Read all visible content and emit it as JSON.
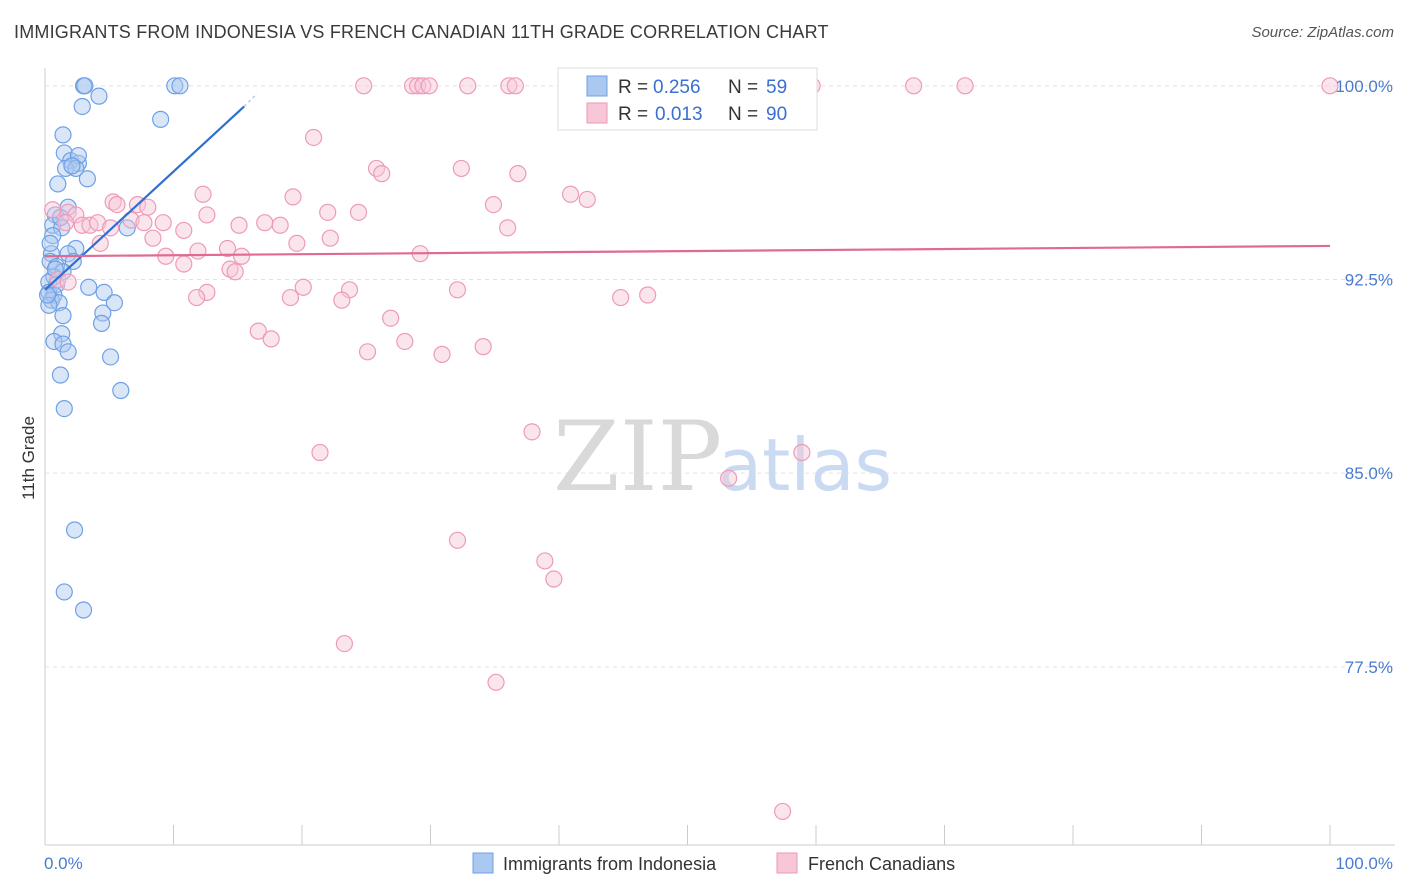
{
  "chart_data": {
    "type": "scatter",
    "title": "IMMIGRANTS FROM INDONESIA VS FRENCH CANADIAN 11TH GRADE CORRELATION CHART",
    "source": "Source: ZipAtlas.com",
    "ylabel": "11th Grade",
    "xlim": [
      0,
      100
    ],
    "ylim": [
      70.6,
      101.0
    ],
    "y_ticks": [
      {
        "value": 100.0,
        "label": "100.0%"
      },
      {
        "value": 92.5,
        "label": "92.5%"
      },
      {
        "value": 85.0,
        "label": "85.0%"
      },
      {
        "value": 77.5,
        "label": "77.5%"
      }
    ],
    "x_tick_labels": {
      "min": "0.0%",
      "max": "100.0%"
    },
    "x_tick_values": [
      0,
      10,
      20,
      30,
      40,
      50,
      60,
      70,
      80,
      90,
      100
    ],
    "watermark": {
      "zip": "ZIP",
      "atlas": "atlas"
    },
    "legend": {
      "r_label": "R =",
      "n_label": "N ="
    },
    "series": [
      {
        "name": "Immigrants from Indonesia",
        "color": "#6fa0e6",
        "fill": "#aac8f0",
        "line_color": "#2f6fd2",
        "r": "0.256",
        "n": "59",
        "trend": {
          "x0": 0.0,
          "y0": 92.1,
          "x1": 15.5,
          "y1": 99.2,
          "dash_to_x": 16.5,
          "dash_to_y": 99.7
        },
        "points": [
          [
            3.0,
            100.0
          ],
          [
            3.1,
            100.0
          ],
          [
            10.1,
            100.0
          ],
          [
            10.5,
            100.0
          ],
          [
            4.2,
            99.6
          ],
          [
            2.9,
            99.2
          ],
          [
            9.0,
            98.7
          ],
          [
            1.4,
            98.1
          ],
          [
            1.5,
            97.4
          ],
          [
            2.0,
            97.1
          ],
          [
            2.6,
            97.0
          ],
          [
            2.6,
            97.3
          ],
          [
            1.6,
            96.8
          ],
          [
            2.4,
            96.8
          ],
          [
            3.3,
            96.4
          ],
          [
            1.0,
            96.2
          ],
          [
            1.8,
            95.3
          ],
          [
            0.8,
            95.0
          ],
          [
            0.6,
            94.6
          ],
          [
            1.3,
            94.5
          ],
          [
            6.4,
            94.5
          ],
          [
            0.6,
            94.2
          ],
          [
            2.4,
            93.7
          ],
          [
            0.5,
            93.5
          ],
          [
            1.8,
            93.5
          ],
          [
            0.4,
            93.2
          ],
          [
            0.9,
            93.0
          ],
          [
            2.2,
            93.2
          ],
          [
            1.4,
            92.8
          ],
          [
            0.7,
            92.6
          ],
          [
            0.3,
            92.4
          ],
          [
            0.9,
            92.3
          ],
          [
            3.4,
            92.2
          ],
          [
            4.6,
            92.0
          ],
          [
            0.3,
            92.0
          ],
          [
            0.7,
            91.9
          ],
          [
            0.5,
            91.7
          ],
          [
            1.1,
            91.6
          ],
          [
            5.4,
            91.6
          ],
          [
            0.3,
            91.5
          ],
          [
            4.5,
            91.2
          ],
          [
            1.4,
            91.1
          ],
          [
            4.4,
            90.8
          ],
          [
            1.3,
            90.4
          ],
          [
            0.7,
            90.1
          ],
          [
            1.4,
            90.0
          ],
          [
            1.8,
            89.7
          ],
          [
            5.1,
            89.5
          ],
          [
            1.2,
            88.8
          ],
          [
            5.9,
            88.2
          ],
          [
            1.5,
            87.5
          ],
          [
            2.3,
            82.8
          ],
          [
            1.5,
            80.4
          ],
          [
            3.0,
            79.7
          ],
          [
            0.2,
            91.9
          ],
          [
            0.4,
            93.9
          ],
          [
            1.2,
            94.9
          ],
          [
            2.1,
            96.9
          ],
          [
            0.8,
            92.9
          ]
        ]
      },
      {
        "name": "French Canadians",
        "color": "#ee9ab8",
        "fill": "#f7c6d7",
        "line_color": "#e06a93",
        "r": "0.013",
        "n": "90",
        "trend": {
          "x0": 0.0,
          "y0": 93.4,
          "x1": 100.0,
          "y1": 93.8
        },
        "points": [
          [
            24.8,
            100.0
          ],
          [
            28.6,
            100.0
          ],
          [
            29.0,
            100.0
          ],
          [
            29.4,
            100.0
          ],
          [
            29.9,
            100.0
          ],
          [
            32.9,
            100.0
          ],
          [
            36.1,
            100.0
          ],
          [
            36.6,
            100.0
          ],
          [
            46.9,
            100.0
          ],
          [
            47.1,
            100.0
          ],
          [
            48.8,
            100.0
          ],
          [
            50.6,
            100.0
          ],
          [
            57.1,
            100.0
          ],
          [
            59.7,
            100.0
          ],
          [
            67.6,
            100.0
          ],
          [
            71.6,
            100.0
          ],
          [
            100.0,
            100.0
          ],
          [
            20.9,
            98.0
          ],
          [
            25.8,
            96.8
          ],
          [
            26.2,
            96.6
          ],
          [
            32.4,
            96.8
          ],
          [
            36.8,
            96.6
          ],
          [
            12.3,
            95.8
          ],
          [
            19.3,
            95.7
          ],
          [
            40.9,
            95.8
          ],
          [
            42.2,
            95.6
          ],
          [
            5.3,
            95.5
          ],
          [
            5.6,
            95.4
          ],
          [
            7.2,
            95.4
          ],
          [
            8.0,
            95.3
          ],
          [
            34.9,
            95.4
          ],
          [
            1.8,
            95.1
          ],
          [
            2.4,
            95.0
          ],
          [
            12.6,
            95.0
          ],
          [
            22.0,
            95.1
          ],
          [
            24.4,
            95.1
          ],
          [
            6.7,
            94.8
          ],
          [
            1.6,
            94.7
          ],
          [
            2.9,
            94.6
          ],
          [
            3.5,
            94.6
          ],
          [
            4.1,
            94.7
          ],
          [
            7.7,
            94.7
          ],
          [
            9.2,
            94.7
          ],
          [
            15.1,
            94.6
          ],
          [
            17.1,
            94.7
          ],
          [
            18.3,
            94.6
          ],
          [
            5.1,
            94.5
          ],
          [
            36.0,
            94.5
          ],
          [
            10.8,
            94.4
          ],
          [
            8.4,
            94.1
          ],
          [
            22.2,
            94.1
          ],
          [
            4.3,
            93.9
          ],
          [
            19.6,
            93.9
          ],
          [
            14.2,
            93.7
          ],
          [
            11.9,
            93.6
          ],
          [
            29.2,
            93.5
          ],
          [
            15.3,
            93.4
          ],
          [
            9.4,
            93.4
          ],
          [
            10.8,
            93.1
          ],
          [
            14.4,
            92.9
          ],
          [
            14.8,
            92.8
          ],
          [
            1.0,
            92.5
          ],
          [
            1.8,
            92.4
          ],
          [
            20.1,
            92.2
          ],
          [
            23.7,
            92.1
          ],
          [
            32.1,
            92.1
          ],
          [
            12.6,
            92.0
          ],
          [
            11.8,
            91.8
          ],
          [
            19.1,
            91.8
          ],
          [
            23.1,
            91.7
          ],
          [
            44.8,
            91.8
          ],
          [
            46.9,
            91.9
          ],
          [
            26.9,
            91.0
          ],
          [
            16.6,
            90.5
          ],
          [
            17.6,
            90.2
          ],
          [
            28.0,
            90.1
          ],
          [
            25.1,
            89.7
          ],
          [
            30.9,
            89.6
          ],
          [
            34.1,
            89.9
          ],
          [
            21.4,
            85.8
          ],
          [
            37.9,
            86.6
          ],
          [
            58.9,
            85.8
          ],
          [
            53.2,
            84.8
          ],
          [
            32.1,
            82.4
          ],
          [
            38.9,
            81.6
          ],
          [
            39.6,
            80.9
          ],
          [
            23.3,
            78.4
          ],
          [
            35.1,
            76.9
          ],
          [
            57.4,
            71.9
          ],
          [
            0.6,
            95.2
          ]
        ]
      }
    ]
  }
}
